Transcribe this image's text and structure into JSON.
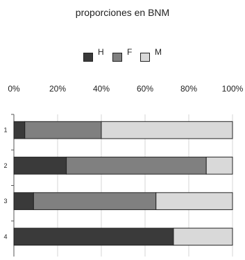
{
  "chart_data": {
    "type": "bar",
    "orientation": "horizontal",
    "stacked": "percent",
    "title": "proporciones en BNM",
    "categories": [
      "1",
      "2",
      "3",
      "4"
    ],
    "series": [
      {
        "name": "H",
        "values": [
          5,
          24,
          9,
          73
        ],
        "color": "#3a3a3a"
      },
      {
        "name": "F",
        "values": [
          35,
          64,
          56,
          0
        ],
        "color": "#808080"
      },
      {
        "name": "M",
        "values": [
          60,
          12,
          35,
          27
        ],
        "color": "#d9d9d9"
      }
    ],
    "xlim": [
      0,
      100
    ],
    "x_ticks": [
      "0%",
      "20%",
      "40%",
      "60%",
      "80%",
      "100%"
    ],
    "grid": true,
    "legend_position": "top"
  }
}
